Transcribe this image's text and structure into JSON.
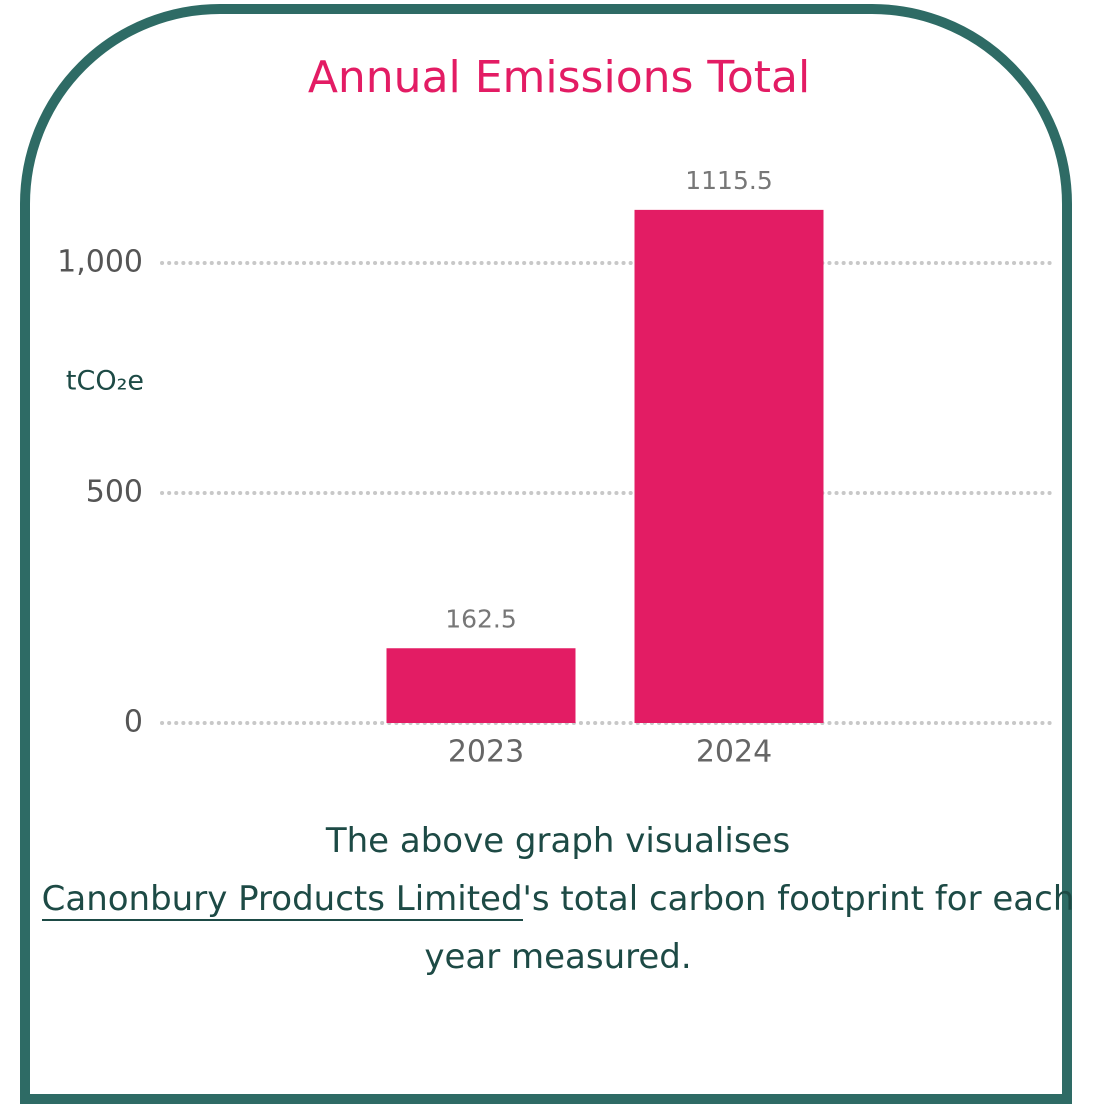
{
  "chart_data": {
    "type": "bar",
    "title": "Annual Emissions Total",
    "y_label": "tCO₂e",
    "categories": [
      "2023",
      "2024"
    ],
    "values": [
      162.5,
      1115.5
    ],
    "color": "#e31c64",
    "ylim": [
      0,
      1200
    ],
    "yticks": [
      0,
      500,
      {
        "value": 1000,
        "label": "1,000"
      }
    ],
    "grid": true
  },
  "caption": {
    "before": "The above graph visualises",
    "link": "Canonbury Products Limited",
    "after": "'s total carbon footprint for each year measured."
  }
}
